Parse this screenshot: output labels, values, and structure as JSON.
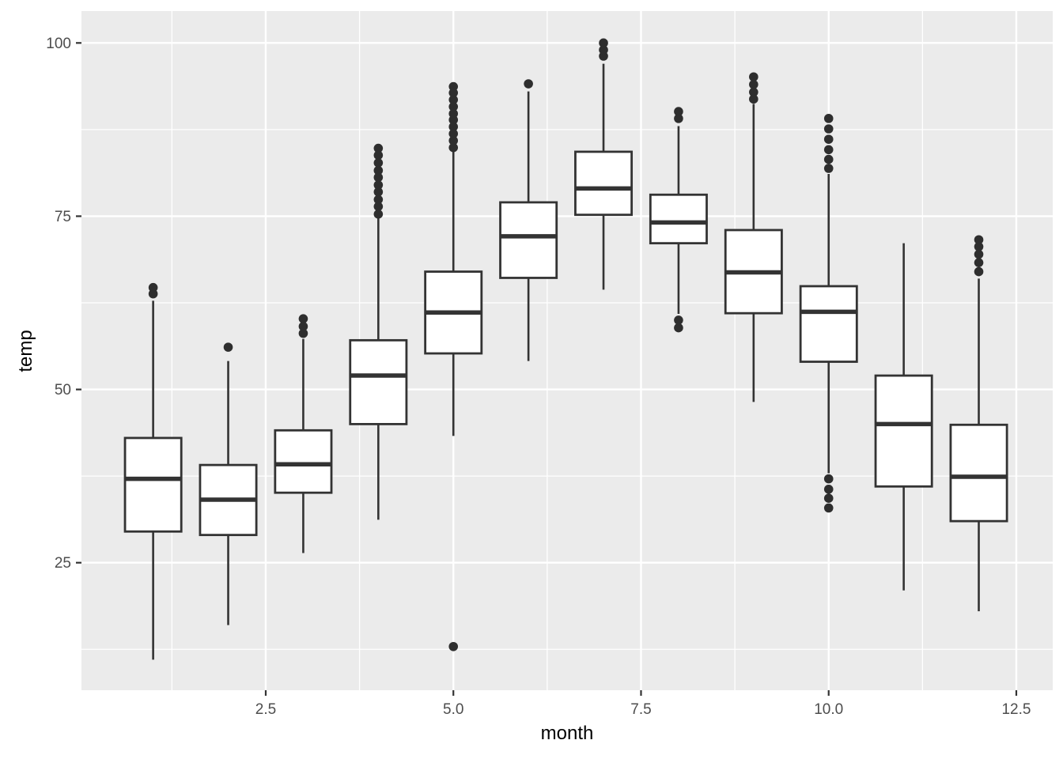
{
  "chart_data": {
    "type": "boxplot",
    "title": "",
    "xlabel": "month",
    "ylabel": "temp",
    "xlim": [
      0.045,
      12.985
    ],
    "ylim": [
      6.6,
      104.6
    ],
    "box_width": 0.75,
    "grid": true,
    "legend": "none",
    "x_ticks": {
      "values": [
        2.5,
        5.0,
        7.5,
        10.0,
        12.5
      ],
      "labels": [
        "2.5",
        "5.0",
        "7.5",
        "10.0",
        "12.5"
      ]
    },
    "y_ticks": {
      "values": [
        25,
        50,
        75,
        100
      ],
      "labels": [
        "25",
        "50",
        "75",
        "100"
      ]
    },
    "x_minor": [
      1.25,
      3.75,
      6.25,
      8.75,
      11.25
    ],
    "y_minor": [
      12.5,
      37.5,
      62.5,
      87.5
    ],
    "boxes": [
      {
        "month": 1,
        "lower": 11.0,
        "q1": 29.5,
        "median": 37.1,
        "q3": 43.0,
        "upper": 62.8,
        "outliers_high": [
          63.8,
          64.7
        ],
        "outliers_low": []
      },
      {
        "month": 2,
        "lower": 16.0,
        "q1": 29.0,
        "median": 34.1,
        "q3": 39.1,
        "upper": 54.1,
        "outliers_high": [
          56.1
        ],
        "outliers_low": []
      },
      {
        "month": 3,
        "lower": 26.4,
        "q1": 35.1,
        "median": 39.2,
        "q3": 44.1,
        "upper": 57.3,
        "outliers_high": [
          58.1,
          59.1,
          60.2
        ],
        "outliers_low": []
      },
      {
        "month": 4,
        "lower": 31.2,
        "q1": 45.0,
        "median": 52.0,
        "q3": 57.1,
        "upper": 74.7,
        "outliers_high": [
          75.3,
          76.4,
          77.4,
          78.5,
          79.5,
          80.6,
          81.6,
          82.7,
          83.8,
          84.8
        ],
        "outliers_low": []
      },
      {
        "month": 5,
        "lower": 43.3,
        "q1": 55.2,
        "median": 61.1,
        "q3": 67.0,
        "upper": 84.4,
        "outliers_high": [
          84.9,
          85.9,
          86.9,
          87.9,
          88.9,
          89.8,
          90.8,
          91.8,
          92.8,
          93.7
        ],
        "outliers_low": [
          12.9
        ]
      },
      {
        "month": 6,
        "lower": 54.1,
        "q1": 66.1,
        "median": 72.1,
        "q3": 77.0,
        "upper": 93.0,
        "outliers_high": [
          94.1
        ],
        "outliers_low": []
      },
      {
        "month": 7,
        "lower": 64.4,
        "q1": 75.2,
        "median": 79.0,
        "q3": 84.3,
        "upper": 97.0,
        "outliers_high": [
          98.1,
          99.0,
          100.0
        ],
        "outliers_low": []
      },
      {
        "month": 8,
        "lower": 60.9,
        "q1": 71.1,
        "median": 74.1,
        "q3": 78.1,
        "upper": 88.0,
        "outliers_high": [
          89.1,
          90.1
        ],
        "outliers_low": [
          58.9,
          60.0
        ]
      },
      {
        "month": 9,
        "lower": 48.2,
        "q1": 61.0,
        "median": 66.9,
        "q3": 73.0,
        "upper": 91.2,
        "outliers_high": [
          91.9,
          92.9,
          94.0,
          95.1
        ],
        "outliers_low": []
      },
      {
        "month": 10,
        "lower": 37.9,
        "q1": 54.0,
        "median": 61.2,
        "q3": 64.9,
        "upper": 81.1,
        "outliers_high": [
          81.9,
          83.2,
          84.6,
          86.1,
          87.6,
          89.1
        ],
        "outliers_low": [
          32.9,
          34.3,
          35.6,
          37.1
        ]
      },
      {
        "month": 11,
        "lower": 21.0,
        "q1": 36.0,
        "median": 45.0,
        "q3": 52.0,
        "upper": 71.1,
        "outliers_high": [],
        "outliers_low": []
      },
      {
        "month": 12,
        "lower": 18.0,
        "q1": 31.0,
        "median": 37.4,
        "q3": 44.9,
        "upper": 66.0,
        "outliers_high": [
          67.0,
          68.3,
          69.5,
          70.6,
          71.6
        ],
        "outliers_low": []
      }
    ],
    "colors": {
      "panel_bg": "#EBEBEB",
      "grid_major": "#FFFFFF",
      "grid_minor": "#F5F5F5",
      "box_stroke": "#333333",
      "box_fill": "#FFFFFF",
      "outlier": "#2E2E2E",
      "tick_mark": "#333333",
      "tick_label": "#4D4D4D",
      "axis_title": "#000000",
      "figure_bg": "#FFFFFF"
    }
  }
}
